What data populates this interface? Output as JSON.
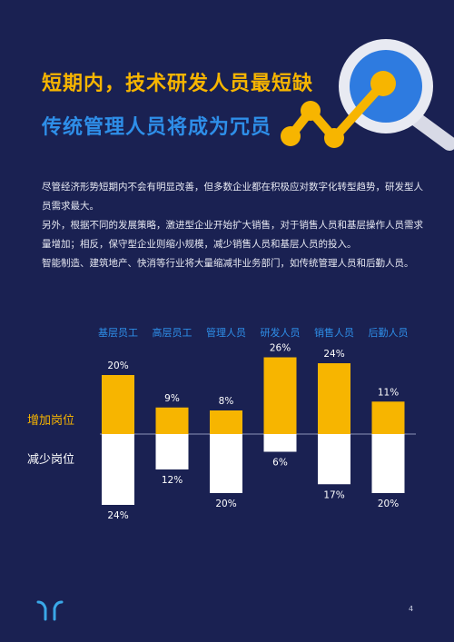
{
  "title_line1": "短期内，技术研发人员最短缺",
  "title_line2": "传统管理人员将成为冗员",
  "paragraphs": [
    "尽管经济形势短期内不会有明显改善，但多数企业都在积极应对数字化转型趋势，研发型人员需求最大。",
    "另外，根据不同的发展策略，激进型企业开始扩大销售，对于销售人员和基层操作人员需求量增加；相反，保守型企业则缩小规模，减少销售人员和基层人员的投入。",
    "智能制造、建筑地产、快消等行业将大量缩减非业务部门，如传统管理人员和后勤人员。"
  ],
  "row_labels": {
    "increase": "增加岗位",
    "decrease": "减少岗位"
  },
  "page_number": "4",
  "colors": {
    "background": "#1a2152",
    "increase": "#f7b500",
    "decrease": "#ffffff",
    "category": "#2e8ee8"
  },
  "chart_data": {
    "type": "bar",
    "categories": [
      "基层员工",
      "高层员工",
      "管理人员",
      "研发人员",
      "销售人员",
      "后勤人员"
    ],
    "series": [
      {
        "name": "增加岗位",
        "values": [
          20,
          9,
          8,
          26,
          24,
          11
        ]
      },
      {
        "name": "减少岗位",
        "values": [
          24,
          12,
          20,
          6,
          17,
          20
        ]
      }
    ],
    "unit": "%",
    "grid": false
  }
}
